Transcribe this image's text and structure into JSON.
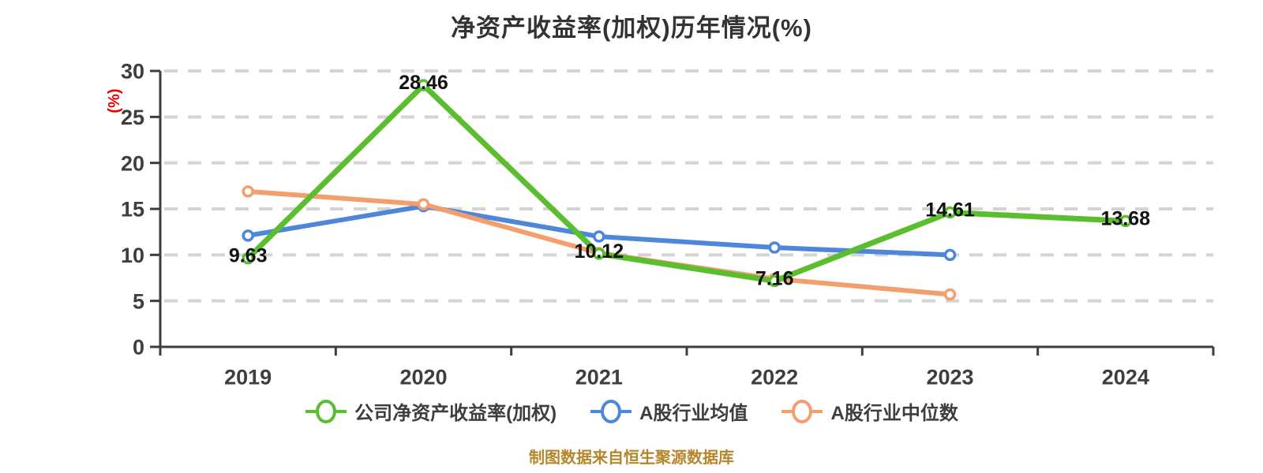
{
  "title": "净资产收益率(加权)历年情况(%)",
  "footer": "制图数据来自恒生聚源数据库",
  "colors": {
    "company": "#5abe2f",
    "industry_mean": "#4e86db",
    "industry_median": "#f49e6e",
    "axis": "#3e3e3e",
    "grid": "#d4d4d4",
    "data_label": "#111111",
    "y_unit_label": "#ee0000",
    "title": "#333333",
    "footer": "#b5862b"
  },
  "chart_data": {
    "type": "line",
    "title": "净资产收益率(加权)历年情况(%)",
    "categories": [
      "2019",
      "2020",
      "2021",
      "2022",
      "2023",
      "2024"
    ],
    "series": [
      {
        "name": "公司净资产收益率(加权)",
        "color": "#5abe2f",
        "values": [
          9.63,
          28.46,
          10.12,
          7.16,
          14.61,
          13.68
        ],
        "labels": [
          "9.63",
          "28.46",
          "10.12",
          "7.16",
          "14.61",
          "13.68"
        ],
        "show_labels": true
      },
      {
        "name": "A股行业均值",
        "color": "#4e86db",
        "values": [
          12.1,
          15.3,
          12.0,
          10.8,
          10.0,
          null
        ],
        "show_labels": false
      },
      {
        "name": "A股行业中位数",
        "color": "#f49e6e",
        "values": [
          16.9,
          15.5,
          10.2,
          7.4,
          5.7,
          null
        ],
        "show_labels": false
      }
    ],
    "xlabel": "",
    "ylabel": "(%)",
    "ylim": [
      0,
      30
    ],
    "yticks": [
      0,
      5,
      10,
      15,
      20,
      25,
      30
    ],
    "grid": "horizontal-dashed",
    "legend_position": "bottom",
    "marker": "circle-white-fill"
  }
}
